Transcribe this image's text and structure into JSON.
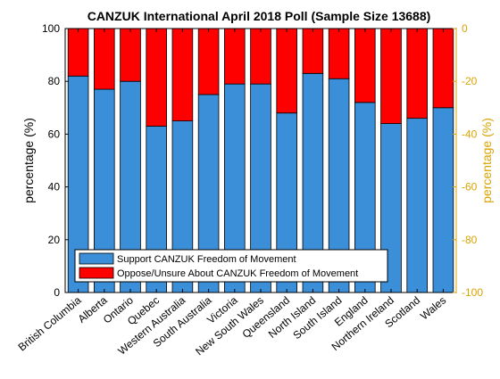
{
  "chart_data": {
    "type": "bar",
    "stacked": true,
    "title": "CANZUK International April 2018 Poll (Sample Size 13688)",
    "ylabel_left": "percentage (%)",
    "ylabel_right": "percentage (%)",
    "ylim_left": [
      0,
      100
    ],
    "ylim_right": [
      -100,
      0
    ],
    "yticks_left": [
      "0",
      "20",
      "40",
      "60",
      "80",
      "100"
    ],
    "yticks_right": [
      "-100",
      "-80",
      "-60",
      "-40",
      "-20",
      "0"
    ],
    "categories": [
      "British Columbia",
      "Alberta",
      "Ontario",
      "Quebec",
      "Western Australia",
      "South Australia",
      "Victoria",
      "New South Wales",
      "Queensland",
      "North Island",
      "South Island",
      "England",
      "Northern Ireland",
      "Scotland",
      "Wales"
    ],
    "series": [
      {
        "name": "Support CANZUK Freedom of Movement",
        "color": "#3a8fd8",
        "values": [
          82,
          77,
          80,
          63,
          65,
          75,
          79,
          79,
          68,
          83,
          81,
          72,
          64,
          66,
          70
        ]
      },
      {
        "name": "Oppose/Unsure About CANZUK Freedom of Movement",
        "color": "#ff0000",
        "values": [
          18,
          23,
          20,
          37,
          35,
          25,
          21,
          21,
          32,
          17,
          19,
          28,
          36,
          34,
          30
        ]
      }
    ],
    "right_axis_color": "#d9a300",
    "legend_position": "bottom-left",
    "grid": false
  }
}
